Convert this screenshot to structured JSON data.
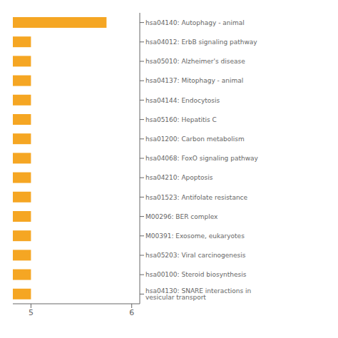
{
  "chart_data": {
    "type": "bar",
    "orientation": "horizontal",
    "categories": [
      "hsa04140: Autophagy - animal",
      "hsa04012: ErbB signaling pathway",
      "hsa05010: Alzheimer's disease",
      "hsa04137: Mitophagy - animal",
      "hsa04144: Endocytosis",
      "hsa05160: Hepatitis C",
      "hsa01200: Carbon metabolism",
      "hsa04068: FoxO signaling pathway",
      "hsa04210: Apoptosis",
      "hsa01523: Antifolate resistance",
      "M00296: BER complex",
      "M00391: Exosome, eukaryotes",
      "hsa05203: Viral carcinogenesis",
      "hsa00100: Steroid biosynthesis",
      "hsa04130: SNARE interactions in vesicular transport"
    ],
    "values": [
      5.75,
      5.0,
      5.0,
      5.0,
      5.0,
      5.0,
      5.0,
      5.0,
      5.0,
      5.0,
      5.0,
      5.0,
      5.0,
      5.0,
      5.0
    ],
    "color": "#F5A623",
    "xlim": [
      4.82,
      6.08
    ],
    "xticks": [
      5,
      6
    ]
  }
}
